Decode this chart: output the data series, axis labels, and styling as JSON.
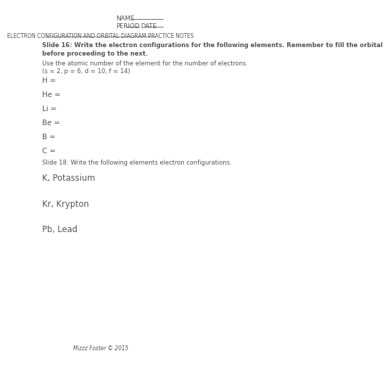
{
  "bg_color": "#ffffff",
  "text_color": "#555555",
  "name_label": "NAME",
  "period_label": "PERIOD",
  "date_label": "DATE",
  "title": "ELECTRON CONFIGURATION AND ORBITAL DIAGRAM PRACTICE NOTES",
  "slide16_bold": "Slide 16: Write the electron configurations for the following elements. Remember to fill the orbital\nbefore proceeding to the next.",
  "hint_line": "Use the atomic number of the element for the number of electrons.",
  "hint2": "(s = 2, p = 6, d = 10, f = 14)",
  "elements": [
    "H =",
    "He =",
    "Li =",
    "Be =",
    "B =",
    "C ="
  ],
  "slide18_normal": "Slide 18: Write the following elements electron configurations.",
  "elements2": [
    "K, Potassium",
    "Kr, Krypton",
    "Pb, Lead"
  ],
  "footer": "Mizzz Foster © 2015"
}
